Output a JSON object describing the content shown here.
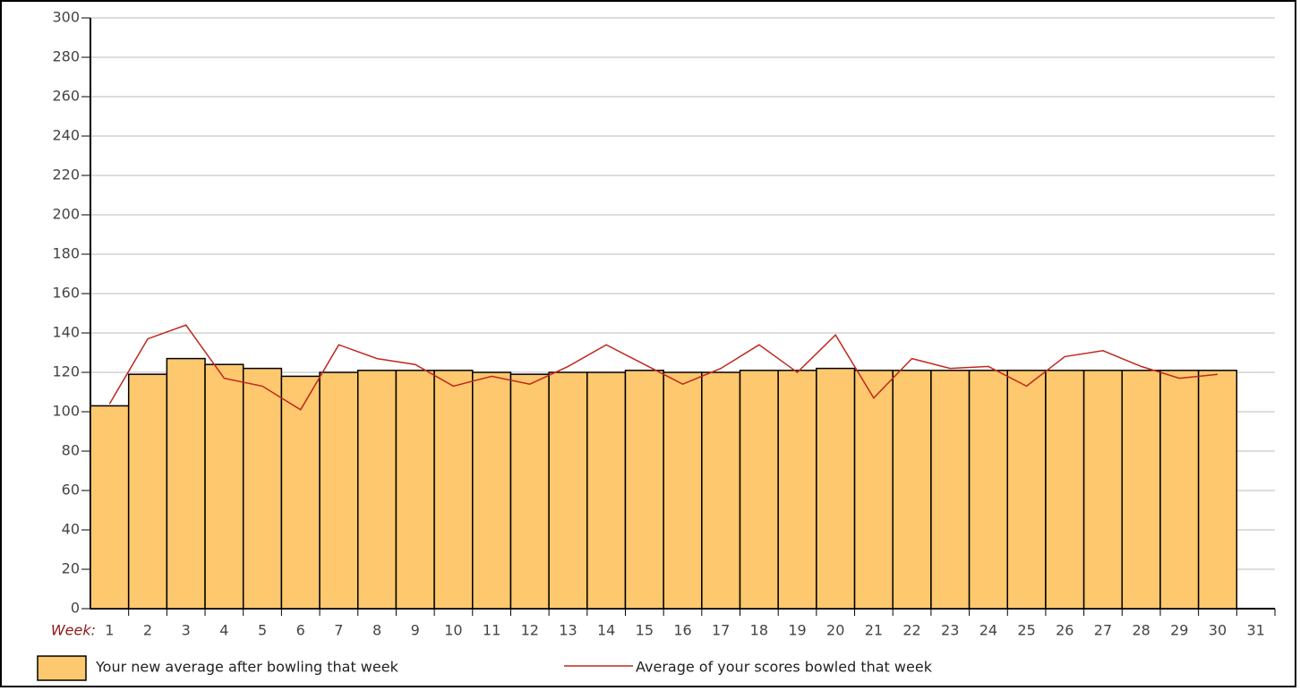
{
  "chart_data": {
    "type": "bar-line",
    "xlabel": "Week:",
    "categories": [
      "1",
      "2",
      "3",
      "4",
      "5",
      "6",
      "7",
      "8",
      "9",
      "10",
      "11",
      "12",
      "13",
      "14",
      "15",
      "16",
      "17",
      "18",
      "19",
      "20",
      "21",
      "22",
      "23",
      "24",
      "25",
      "26",
      "27",
      "28",
      "29",
      "30",
      "31"
    ],
    "series": [
      {
        "name": "Your new average after bowling that week",
        "type": "bar",
        "color": "#fdc86e",
        "values": [
          103,
          119,
          127,
          124,
          122,
          118,
          120,
          121,
          121,
          121,
          120,
          119,
          120,
          120,
          121,
          120,
          120,
          121,
          121,
          122,
          121,
          121,
          121,
          121,
          121,
          121,
          121,
          121,
          121,
          121,
          0
        ]
      },
      {
        "name": "Average of your scores bowled that week",
        "type": "line",
        "color": "#c0281e",
        "values": [
          104,
          137,
          144,
          117,
          113,
          101,
          134,
          127,
          124,
          113,
          118,
          114,
          123,
          134,
          124,
          114,
          122,
          134,
          120,
          139,
          107,
          127,
          122,
          123,
          113,
          128,
          131,
          123,
          117,
          119,
          null
        ]
      }
    ],
    "ylim": [
      0,
      300
    ],
    "yticks": [
      0,
      20,
      40,
      60,
      80,
      100,
      120,
      140,
      160,
      180,
      200,
      220,
      240,
      260,
      280,
      300
    ],
    "grid": true
  }
}
